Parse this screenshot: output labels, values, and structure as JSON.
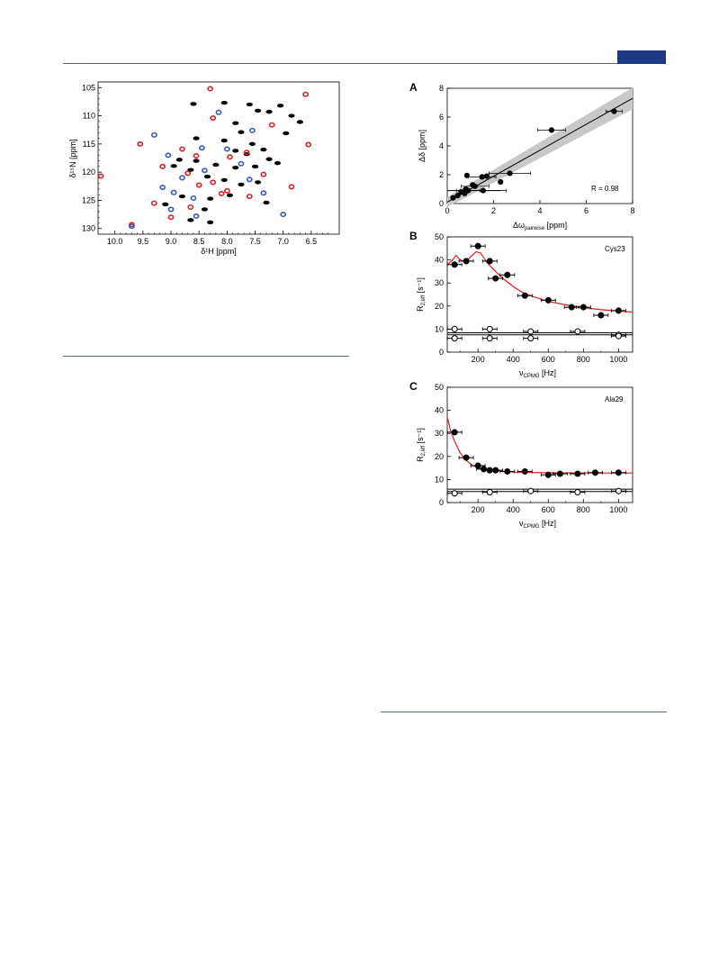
{
  "header": {
    "tab_color": "#1c3a86"
  },
  "figure_left": {
    "chart_data": {
      "type": "scatter",
      "xlabel": "δ¹H [ppm]",
      "ylabel": "δ¹⁵N [ppm]",
      "xlim": [
        10.3,
        6.0
      ],
      "ylim": [
        104,
        131
      ],
      "x_ticks": [
        "10.0",
        "9.5",
        "9.0",
        "8.5",
        "8.0",
        "7.5",
        "7.0",
        "6.5"
      ],
      "y_ticks": [
        "105",
        "110",
        "115",
        "120",
        "125",
        "130"
      ],
      "x_tick_values": [
        10.0,
        9.5,
        9.0,
        8.5,
        8.0,
        7.5,
        7.0,
        6.5
      ],
      "y_tick_values": [
        105,
        110,
        115,
        120,
        125,
        130
      ],
      "series": [
        {
          "color": "#000000",
          "points": [
            [
              8.6,
              107.9
            ],
            [
              8.05,
              107.7
            ],
            [
              7.6,
              108.0
            ],
            [
              7.45,
              109.1
            ],
            [
              7.25,
              109.3
            ],
            [
              7.05,
              108.2
            ],
            [
              6.85,
              110.0
            ],
            [
              6.7,
              111.1
            ],
            [
              6.95,
              113.1
            ],
            [
              7.85,
              111.3
            ],
            [
              7.75,
              112.9
            ],
            [
              8.05,
              114.4
            ],
            [
              7.55,
              115.0
            ],
            [
              7.35,
              116.0
            ],
            [
              7.25,
              117.7
            ],
            [
              7.1,
              118.4
            ],
            [
              7.5,
              119.0
            ],
            [
              7.85,
              119.2
            ],
            [
              8.2,
              118.7
            ],
            [
              8.55,
              118.0
            ],
            [
              8.85,
              117.8
            ],
            [
              8.95,
              118.9
            ],
            [
              8.65,
              119.6
            ],
            [
              8.35,
              120.8
            ],
            [
              8.05,
              121.4
            ],
            [
              7.75,
              122.2
            ],
            [
              7.45,
              121.8
            ],
            [
              7.95,
              124.1
            ],
            [
              8.3,
              124.7
            ],
            [
              8.8,
              124.3
            ],
            [
              9.1,
              125.7
            ],
            [
              8.4,
              126.6
            ],
            [
              8.65,
              128.5
            ],
            [
              8.3,
              128.9
            ],
            [
              8.55,
              114.0
            ],
            [
              7.3,
              125.4
            ],
            [
              7.85,
              116.2
            ],
            [
              7.65,
              116.8
            ]
          ]
        },
        {
          "color": "#d62027",
          "points": [
            [
              8.3,
              105.2
            ],
            [
              6.6,
              106.2
            ],
            [
              8.25,
              110.4
            ],
            [
              7.2,
              111.6
            ],
            [
              9.55,
              115.0
            ],
            [
              8.8,
              115.9
            ],
            [
              8.55,
              117.1
            ],
            [
              7.95,
              117.3
            ],
            [
              7.65,
              116.5
            ],
            [
              6.55,
              115.1
            ],
            [
              10.25,
              120.7
            ],
            [
              9.15,
              119.0
            ],
            [
              8.7,
              120.2
            ],
            [
              8.25,
              121.8
            ],
            [
              8.0,
              123.3
            ],
            [
              7.6,
              124.3
            ],
            [
              6.85,
              122.6
            ],
            [
              9.3,
              125.5
            ],
            [
              8.65,
              126.2
            ],
            [
              9.0,
              128.0
            ],
            [
              9.7,
              129.3
            ],
            [
              8.1,
              123.8
            ],
            [
              7.35,
              120.4
            ],
            [
              8.5,
              122.3
            ]
          ]
        },
        {
          "color": "#3a58b8",
          "points": [
            [
              8.15,
              109.4
            ],
            [
              9.3,
              113.4
            ],
            [
              7.55,
              112.6
            ],
            [
              8.45,
              115.7
            ],
            [
              8.0,
              115.9
            ],
            [
              9.05,
              117.0
            ],
            [
              8.8,
              121.0
            ],
            [
              8.4,
              119.7
            ],
            [
              7.6,
              121.3
            ],
            [
              9.15,
              122.7
            ],
            [
              8.95,
              123.6
            ],
            [
              8.6,
              124.6
            ],
            [
              7.35,
              123.7
            ],
            [
              9.0,
              126.6
            ],
            [
              8.55,
              127.8
            ],
            [
              7.0,
              127.5
            ],
            [
              9.7,
              129.6
            ],
            [
              7.75,
              118.5
            ]
          ]
        }
      ]
    }
  },
  "panel_a": {
    "label": "A",
    "chart_data": {
      "type": "scatter",
      "xlabel_main": "Δω",
      "xlabel_sub": "pairwise",
      "xlabel_unit": " [ppm]",
      "ylabel": "Δδ [ppm]",
      "xlim": [
        0,
        8
      ],
      "ylim": [
        0,
        8
      ],
      "ticks": [
        "0",
        "2",
        "4",
        "6",
        "8"
      ],
      "tick_values": [
        0,
        2,
        4,
        6,
        8
      ],
      "annotation": "R = 0.98",
      "fit_line": {
        "from": [
          0,
          0.1
        ],
        "to": [
          8,
          7.3
        ]
      },
      "points": [
        [
          0.25,
          0.4,
          0,
          0.0
        ],
        [
          0.45,
          0.55,
          0,
          0.0
        ],
        [
          0.6,
          0.8,
          0,
          0.0
        ],
        [
          0.75,
          0.7,
          0,
          0.0
        ],
        [
          0.8,
          1.0,
          0,
          0.0
        ],
        [
          0.9,
          0.9,
          0.5,
          0.0
        ],
        [
          1.1,
          1.3,
          0,
          0.0
        ],
        [
          1.2,
          1.2,
          0.6,
          0.0
        ],
        [
          1.55,
          0.9,
          1.0,
          0.0
        ],
        [
          1.7,
          1.9,
          0,
          0.0
        ],
        [
          2.3,
          1.5,
          0,
          0.0
        ],
        [
          2.7,
          2.1,
          0.9,
          0.0
        ],
        [
          4.5,
          5.1,
          0.6,
          0.0
        ],
        [
          7.2,
          6.4,
          0.35,
          0.0
        ],
        [
          0.85,
          1.95,
          0,
          0.0
        ],
        [
          1.5,
          1.85,
          0.6,
          0.0
        ]
      ]
    }
  },
  "panel_b": {
    "label": "B",
    "residue": "Cys23",
    "chart_data": {
      "type": "scatter",
      "xlabel_main": "ν",
      "xlabel_sub": "CPMG",
      "xlabel_unit": " [Hz]",
      "ylabel_main": "R",
      "ylabel_sub": "2,eff",
      "ylabel_unit": " [s⁻¹]",
      "xlim": [
        25,
        1080
      ],
      "ylim": [
        0,
        50
      ],
      "x_ticks": [
        "200",
        "400",
        "600",
        "800",
        "1000"
      ],
      "x_tick_values": [
        200,
        400,
        600,
        800,
        1000
      ],
      "y_ticks": [
        "0",
        "10",
        "20",
        "30",
        "40",
        "50"
      ],
      "y_tick_values": [
        0,
        10,
        20,
        30,
        40,
        50
      ],
      "filled": [
        [
          67,
          38
        ],
        [
          133,
          39.5
        ],
        [
          200,
          46
        ],
        [
          267,
          39.5
        ],
        [
          300,
          32
        ],
        [
          367,
          33.5
        ],
        [
          467,
          24.5
        ],
        [
          600,
          22.5
        ],
        [
          733,
          19.5
        ],
        [
          800,
          19.5
        ],
        [
          900,
          16
        ],
        [
          1000,
          18
        ]
      ],
      "hollow": [
        [
          67,
          10
        ],
        [
          67,
          6
        ],
        [
          267,
          10
        ],
        [
          267,
          6
        ],
        [
          500,
          9
        ],
        [
          500,
          6
        ],
        [
          767,
          9
        ],
        [
          1000,
          7.5
        ],
        [
          1000,
          7
        ]
      ],
      "fit_curve": [
        [
          25,
          38
        ],
        [
          50,
          39.5
        ],
        [
          75,
          42
        ],
        [
          100,
          40
        ],
        [
          130,
          39
        ],
        [
          160,
          41.5
        ],
        [
          190,
          43.5
        ],
        [
          215,
          43
        ],
        [
          250,
          39
        ],
        [
          300,
          35
        ],
        [
          350,
          31.5
        ],
        [
          400,
          28.5
        ],
        [
          450,
          26
        ],
        [
          500,
          24.5
        ],
        [
          600,
          22
        ],
        [
          700,
          20.5
        ],
        [
          800,
          19.3
        ],
        [
          900,
          18.4
        ],
        [
          1000,
          17.8
        ],
        [
          1080,
          17.4
        ]
      ],
      "flat_lines": [
        7.5,
        8.4
      ]
    }
  },
  "panel_c": {
    "label": "C",
    "residue": "Ala29",
    "chart_data": {
      "type": "scatter",
      "xlabel_main": "ν",
      "xlabel_sub": "CPMG",
      "xlabel_unit": " [Hz]",
      "ylabel_main": "R",
      "ylabel_sub": "2,eff",
      "ylabel_unit": " [s⁻¹]",
      "xlim": [
        25,
        1080
      ],
      "ylim": [
        0,
        50
      ],
      "x_ticks": [
        "200",
        "400",
        "600",
        "800",
        "1000"
      ],
      "x_tick_values": [
        200,
        400,
        600,
        800,
        1000
      ],
      "y_ticks": [
        "0",
        "10",
        "20",
        "30",
        "40",
        "50"
      ],
      "y_tick_values": [
        0,
        10,
        20,
        30,
        40,
        50
      ],
      "filled": [
        [
          67,
          30.5
        ],
        [
          133,
          19.5
        ],
        [
          200,
          16
        ],
        [
          233,
          14.5
        ],
        [
          267,
          14
        ],
        [
          300,
          14
        ],
        [
          367,
          13.5
        ],
        [
          467,
          13.5
        ],
        [
          600,
          12
        ],
        [
          667,
          12.5
        ],
        [
          767,
          12.5
        ],
        [
          867,
          13
        ],
        [
          1000,
          13
        ]
      ],
      "hollow": [
        [
          67,
          4
        ],
        [
          267,
          4.5
        ],
        [
          500,
          5
        ],
        [
          767,
          4.5
        ],
        [
          1000,
          5
        ]
      ],
      "fit_curve": [
        [
          25,
          37
        ],
        [
          45,
          31
        ],
        [
          70,
          26
        ],
        [
          100,
          21.5
        ],
        [
          130,
          18.5
        ],
        [
          170,
          16
        ],
        [
          220,
          14.6
        ],
        [
          300,
          13.7
        ],
        [
          400,
          13.2
        ],
        [
          600,
          12.9
        ],
        [
          800,
          12.8
        ],
        [
          1080,
          12.8
        ]
      ],
      "flat_lines": [
        4.8,
        5.8
      ]
    }
  }
}
